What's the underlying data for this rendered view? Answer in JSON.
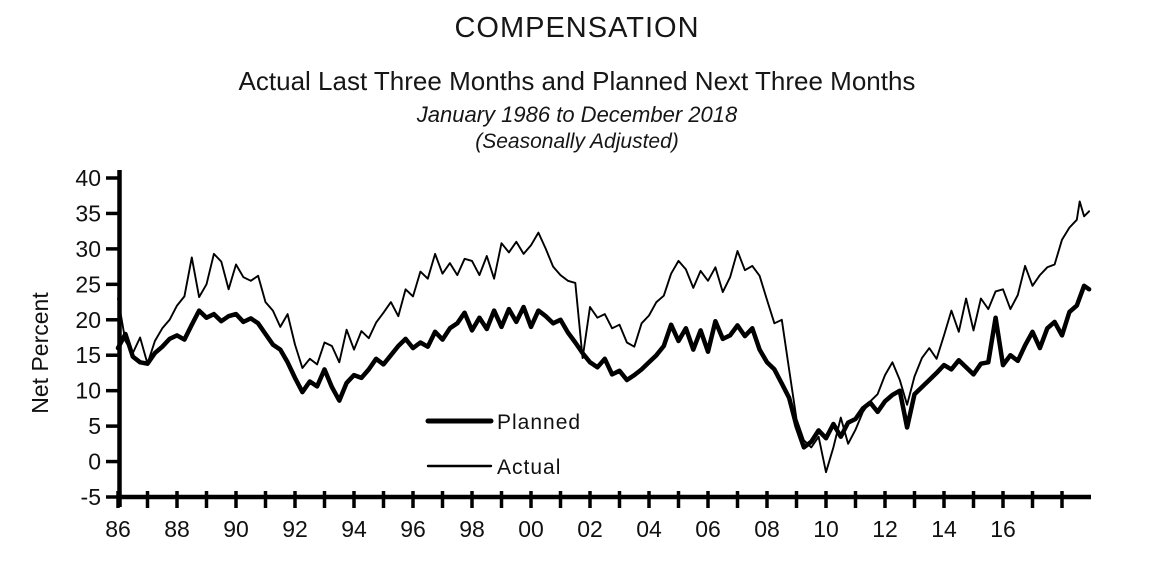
{
  "header": {
    "title": "COMPENSATION",
    "subtitle": "Actual Last Three Months and Planned Next Three Months",
    "period": "January 1986 to December 2018",
    "note": "(Seasonally Adjusted)"
  },
  "chart_data": {
    "type": "line",
    "title": "COMPENSATION",
    "subtitle": "Actual Last Three Months and Planned Next Three Months",
    "period": "January 1986 to December 2018",
    "note": "(Seasonally Adjusted)",
    "xlabel": "",
    "ylabel": "Net Percent",
    "ylim": [
      -5,
      40
    ],
    "grid": false,
    "legend_position": "center-bottom",
    "y_axis": {
      "ticks": [
        40,
        35,
        30,
        25,
        20,
        15,
        10,
        5,
        0,
        -5
      ]
    },
    "x_axis": {
      "minor_tick_start_year": 1986,
      "minor_tick_end_year": 2018,
      "label_start_year": 1986,
      "label_step_years": 2,
      "labels": [
        "86",
        "88",
        "90",
        "92",
        "94",
        "96",
        "98",
        "00",
        "02",
        "04",
        "06",
        "08",
        "10",
        "12",
        "14",
        "16"
      ]
    },
    "series": [
      {
        "name": "Planned",
        "line_weight": "thick",
        "points": [
          [
            1986.0,
            16.0
          ],
          [
            1986.25,
            18.0
          ],
          [
            1986.5,
            14.8
          ],
          [
            1986.75,
            14.0
          ],
          [
            1987.0,
            13.8
          ],
          [
            1987.25,
            15.3
          ],
          [
            1987.5,
            16.2
          ],
          [
            1987.75,
            17.3
          ],
          [
            1988.0,
            17.8
          ],
          [
            1988.25,
            17.2
          ],
          [
            1988.5,
            19.3
          ],
          [
            1988.75,
            21.3
          ],
          [
            1989.0,
            20.3
          ],
          [
            1989.25,
            20.8
          ],
          [
            1989.5,
            19.8
          ],
          [
            1989.75,
            20.5
          ],
          [
            1990.0,
            20.8
          ],
          [
            1990.25,
            19.7
          ],
          [
            1990.5,
            20.2
          ],
          [
            1990.75,
            19.5
          ],
          [
            1991.0,
            18.0
          ],
          [
            1991.25,
            16.5
          ],
          [
            1991.5,
            15.8
          ],
          [
            1991.75,
            14.0
          ],
          [
            1992.0,
            11.8
          ],
          [
            1992.25,
            9.8
          ],
          [
            1992.5,
            11.3
          ],
          [
            1992.75,
            10.6
          ],
          [
            1993.0,
            13.0
          ],
          [
            1993.25,
            10.5
          ],
          [
            1993.5,
            8.6
          ],
          [
            1993.75,
            11.1
          ],
          [
            1994.0,
            12.2
          ],
          [
            1994.25,
            11.8
          ],
          [
            1994.5,
            13.0
          ],
          [
            1994.75,
            14.5
          ],
          [
            1995.0,
            13.7
          ],
          [
            1995.25,
            15.0
          ],
          [
            1995.5,
            16.3
          ],
          [
            1995.75,
            17.3
          ],
          [
            1996.0,
            16.0
          ],
          [
            1996.25,
            16.8
          ],
          [
            1996.5,
            16.2
          ],
          [
            1996.75,
            18.3
          ],
          [
            1997.0,
            17.2
          ],
          [
            1997.25,
            18.8
          ],
          [
            1997.5,
            19.5
          ],
          [
            1997.75,
            21.0
          ],
          [
            1998.0,
            18.5
          ],
          [
            1998.25,
            20.3
          ],
          [
            1998.5,
            18.7
          ],
          [
            1998.75,
            21.3
          ],
          [
            1999.0,
            19.0
          ],
          [
            1999.25,
            21.5
          ],
          [
            1999.5,
            19.7
          ],
          [
            1999.75,
            21.8
          ],
          [
            2000.0,
            19.0
          ],
          [
            2000.25,
            21.3
          ],
          [
            2000.5,
            20.5
          ],
          [
            2000.75,
            19.5
          ],
          [
            2001.0,
            20.0
          ],
          [
            2001.25,
            18.2
          ],
          [
            2001.5,
            16.8
          ],
          [
            2001.75,
            15.3
          ],
          [
            2002.0,
            14.0
          ],
          [
            2002.25,
            13.3
          ],
          [
            2002.5,
            14.5
          ],
          [
            2002.75,
            12.3
          ],
          [
            2003.0,
            12.8
          ],
          [
            2003.25,
            11.5
          ],
          [
            2003.5,
            12.2
          ],
          [
            2003.75,
            13.0
          ],
          [
            2004.0,
            14.0
          ],
          [
            2004.25,
            15.0
          ],
          [
            2004.5,
            16.3
          ],
          [
            2004.75,
            19.3
          ],
          [
            2005.0,
            17.0
          ],
          [
            2005.25,
            18.8
          ],
          [
            2005.5,
            15.8
          ],
          [
            2005.75,
            18.5
          ],
          [
            2006.0,
            15.5
          ],
          [
            2006.25,
            19.8
          ],
          [
            2006.5,
            17.3
          ],
          [
            2006.75,
            17.8
          ],
          [
            2007.0,
            19.2
          ],
          [
            2007.25,
            17.7
          ],
          [
            2007.5,
            18.8
          ],
          [
            2007.75,
            15.8
          ],
          [
            2008.0,
            14.0
          ],
          [
            2008.25,
            13.0
          ],
          [
            2008.5,
            11.0
          ],
          [
            2008.75,
            9.0
          ],
          [
            2009.0,
            5.0
          ],
          [
            2009.25,
            2.0
          ],
          [
            2009.5,
            2.8
          ],
          [
            2009.75,
            4.4
          ],
          [
            2010.0,
            3.3
          ],
          [
            2010.25,
            5.3
          ],
          [
            2010.5,
            3.5
          ],
          [
            2010.75,
            5.5
          ],
          [
            2011.0,
            6.0
          ],
          [
            2011.25,
            7.5
          ],
          [
            2011.5,
            8.3
          ],
          [
            2011.75,
            7.0
          ],
          [
            2012.0,
            8.5
          ],
          [
            2012.25,
            9.4
          ],
          [
            2012.5,
            10.0
          ],
          [
            2012.75,
            4.8
          ],
          [
            2013.0,
            9.5
          ],
          [
            2013.25,
            10.5
          ],
          [
            2013.5,
            11.5
          ],
          [
            2013.75,
            12.5
          ],
          [
            2014.0,
            13.6
          ],
          [
            2014.25,
            13.0
          ],
          [
            2014.5,
            14.3
          ],
          [
            2014.75,
            13.3
          ],
          [
            2015.0,
            12.3
          ],
          [
            2015.25,
            13.8
          ],
          [
            2015.5,
            14.0
          ],
          [
            2015.75,
            20.3
          ],
          [
            2016.0,
            13.6
          ],
          [
            2016.25,
            15.0
          ],
          [
            2016.5,
            14.2
          ],
          [
            2016.75,
            16.4
          ],
          [
            2017.0,
            18.3
          ],
          [
            2017.25,
            16.0
          ],
          [
            2017.5,
            18.8
          ],
          [
            2017.75,
            19.7
          ],
          [
            2018.0,
            17.8
          ],
          [
            2018.25,
            21.1
          ],
          [
            2018.5,
            22.0
          ],
          [
            2018.75,
            24.8
          ],
          [
            2018.92,
            24.3
          ]
        ]
      },
      {
        "name": "Actual",
        "line_weight": "thin",
        "points": [
          [
            1986.0,
            23.0
          ],
          [
            1986.25,
            17.0
          ],
          [
            1986.5,
            15.3
          ],
          [
            1986.75,
            17.5
          ],
          [
            1987.0,
            13.8
          ],
          [
            1987.25,
            17.0
          ],
          [
            1987.5,
            18.8
          ],
          [
            1987.75,
            20.0
          ],
          [
            1988.0,
            22.0
          ],
          [
            1988.25,
            23.3
          ],
          [
            1988.5,
            28.8
          ],
          [
            1988.75,
            23.2
          ],
          [
            1989.0,
            25.0
          ],
          [
            1989.25,
            29.3
          ],
          [
            1989.5,
            28.2
          ],
          [
            1989.75,
            24.3
          ],
          [
            1990.0,
            27.8
          ],
          [
            1990.25,
            26.0
          ],
          [
            1990.5,
            25.5
          ],
          [
            1990.75,
            26.2
          ],
          [
            1991.0,
            22.5
          ],
          [
            1991.25,
            21.3
          ],
          [
            1991.5,
            19.0
          ],
          [
            1991.75,
            20.8
          ],
          [
            1992.0,
            16.5
          ],
          [
            1992.25,
            13.2
          ],
          [
            1992.5,
            14.5
          ],
          [
            1992.75,
            13.7
          ],
          [
            1993.0,
            16.8
          ],
          [
            1993.25,
            16.3
          ],
          [
            1993.5,
            14.0
          ],
          [
            1993.75,
            18.6
          ],
          [
            1994.0,
            15.8
          ],
          [
            1994.25,
            18.4
          ],
          [
            1994.5,
            17.4
          ],
          [
            1994.75,
            19.6
          ],
          [
            1995.0,
            21.0
          ],
          [
            1995.25,
            22.5
          ],
          [
            1995.5,
            20.5
          ],
          [
            1995.75,
            24.3
          ],
          [
            1996.0,
            23.3
          ],
          [
            1996.25,
            26.8
          ],
          [
            1996.5,
            25.8
          ],
          [
            1996.75,
            29.3
          ],
          [
            1997.0,
            26.5
          ],
          [
            1997.25,
            28.0
          ],
          [
            1997.5,
            26.3
          ],
          [
            1997.75,
            28.6
          ],
          [
            1998.0,
            28.3
          ],
          [
            1998.25,
            26.3
          ],
          [
            1998.5,
            29.0
          ],
          [
            1998.75,
            25.8
          ],
          [
            1999.0,
            30.8
          ],
          [
            1999.25,
            29.5
          ],
          [
            1999.5,
            31.0
          ],
          [
            1999.75,
            29.3
          ],
          [
            2000.0,
            30.5
          ],
          [
            2000.25,
            32.3
          ],
          [
            2000.5,
            30.0
          ],
          [
            2000.75,
            27.5
          ],
          [
            2001.0,
            26.3
          ],
          [
            2001.25,
            25.5
          ],
          [
            2001.5,
            25.2
          ],
          [
            2001.75,
            14.6
          ],
          [
            2002.0,
            21.8
          ],
          [
            2002.25,
            20.3
          ],
          [
            2002.5,
            20.8
          ],
          [
            2002.75,
            18.8
          ],
          [
            2003.0,
            19.3
          ],
          [
            2003.25,
            16.8
          ],
          [
            2003.5,
            16.2
          ],
          [
            2003.75,
            19.5
          ],
          [
            2004.0,
            20.6
          ],
          [
            2004.25,
            22.5
          ],
          [
            2004.5,
            23.4
          ],
          [
            2004.75,
            26.5
          ],
          [
            2005.0,
            28.3
          ],
          [
            2005.25,
            27.1
          ],
          [
            2005.5,
            24.5
          ],
          [
            2005.75,
            26.9
          ],
          [
            2006.0,
            25.5
          ],
          [
            2006.25,
            27.4
          ],
          [
            2006.5,
            23.9
          ],
          [
            2006.75,
            26.0
          ],
          [
            2007.0,
            29.7
          ],
          [
            2007.25,
            27.0
          ],
          [
            2007.5,
            27.6
          ],
          [
            2007.75,
            26.2
          ],
          [
            2008.0,
            22.8
          ],
          [
            2008.25,
            19.5
          ],
          [
            2008.5,
            20.0
          ],
          [
            2008.75,
            13.0
          ],
          [
            2009.0,
            6.0
          ],
          [
            2009.25,
            3.0
          ],
          [
            2009.5,
            2.0
          ],
          [
            2009.75,
            3.5
          ],
          [
            2010.0,
            -1.5
          ],
          [
            2010.25,
            2.0
          ],
          [
            2010.5,
            6.2
          ],
          [
            2010.75,
            2.5
          ],
          [
            2011.0,
            4.5
          ],
          [
            2011.25,
            7.0
          ],
          [
            2011.5,
            8.5
          ],
          [
            2011.75,
            9.5
          ],
          [
            2012.0,
            12.2
          ],
          [
            2012.25,
            14.0
          ],
          [
            2012.5,
            11.5
          ],
          [
            2012.75,
            8.0
          ],
          [
            2013.0,
            12.0
          ],
          [
            2013.25,
            14.6
          ],
          [
            2013.5,
            16.0
          ],
          [
            2013.75,
            14.5
          ],
          [
            2014.0,
            17.8
          ],
          [
            2014.25,
            21.3
          ],
          [
            2014.5,
            18.3
          ],
          [
            2014.75,
            23.0
          ],
          [
            2015.0,
            18.5
          ],
          [
            2015.25,
            23.0
          ],
          [
            2015.5,
            21.5
          ],
          [
            2015.75,
            24.0
          ],
          [
            2016.0,
            24.3
          ],
          [
            2016.25,
            21.5
          ],
          [
            2016.5,
            23.5
          ],
          [
            2016.75,
            27.6
          ],
          [
            2017.0,
            24.8
          ],
          [
            2017.25,
            26.3
          ],
          [
            2017.5,
            27.4
          ],
          [
            2017.75,
            27.8
          ],
          [
            2018.0,
            31.3
          ],
          [
            2018.25,
            33.0
          ],
          [
            2018.5,
            34.1
          ],
          [
            2018.6,
            36.7
          ],
          [
            2018.75,
            34.6
          ],
          [
            2018.92,
            35.3
          ]
        ]
      }
    ],
    "colors": {
      "line": "#000000",
      "text": "#161616",
      "background": "#ffffff"
    }
  }
}
